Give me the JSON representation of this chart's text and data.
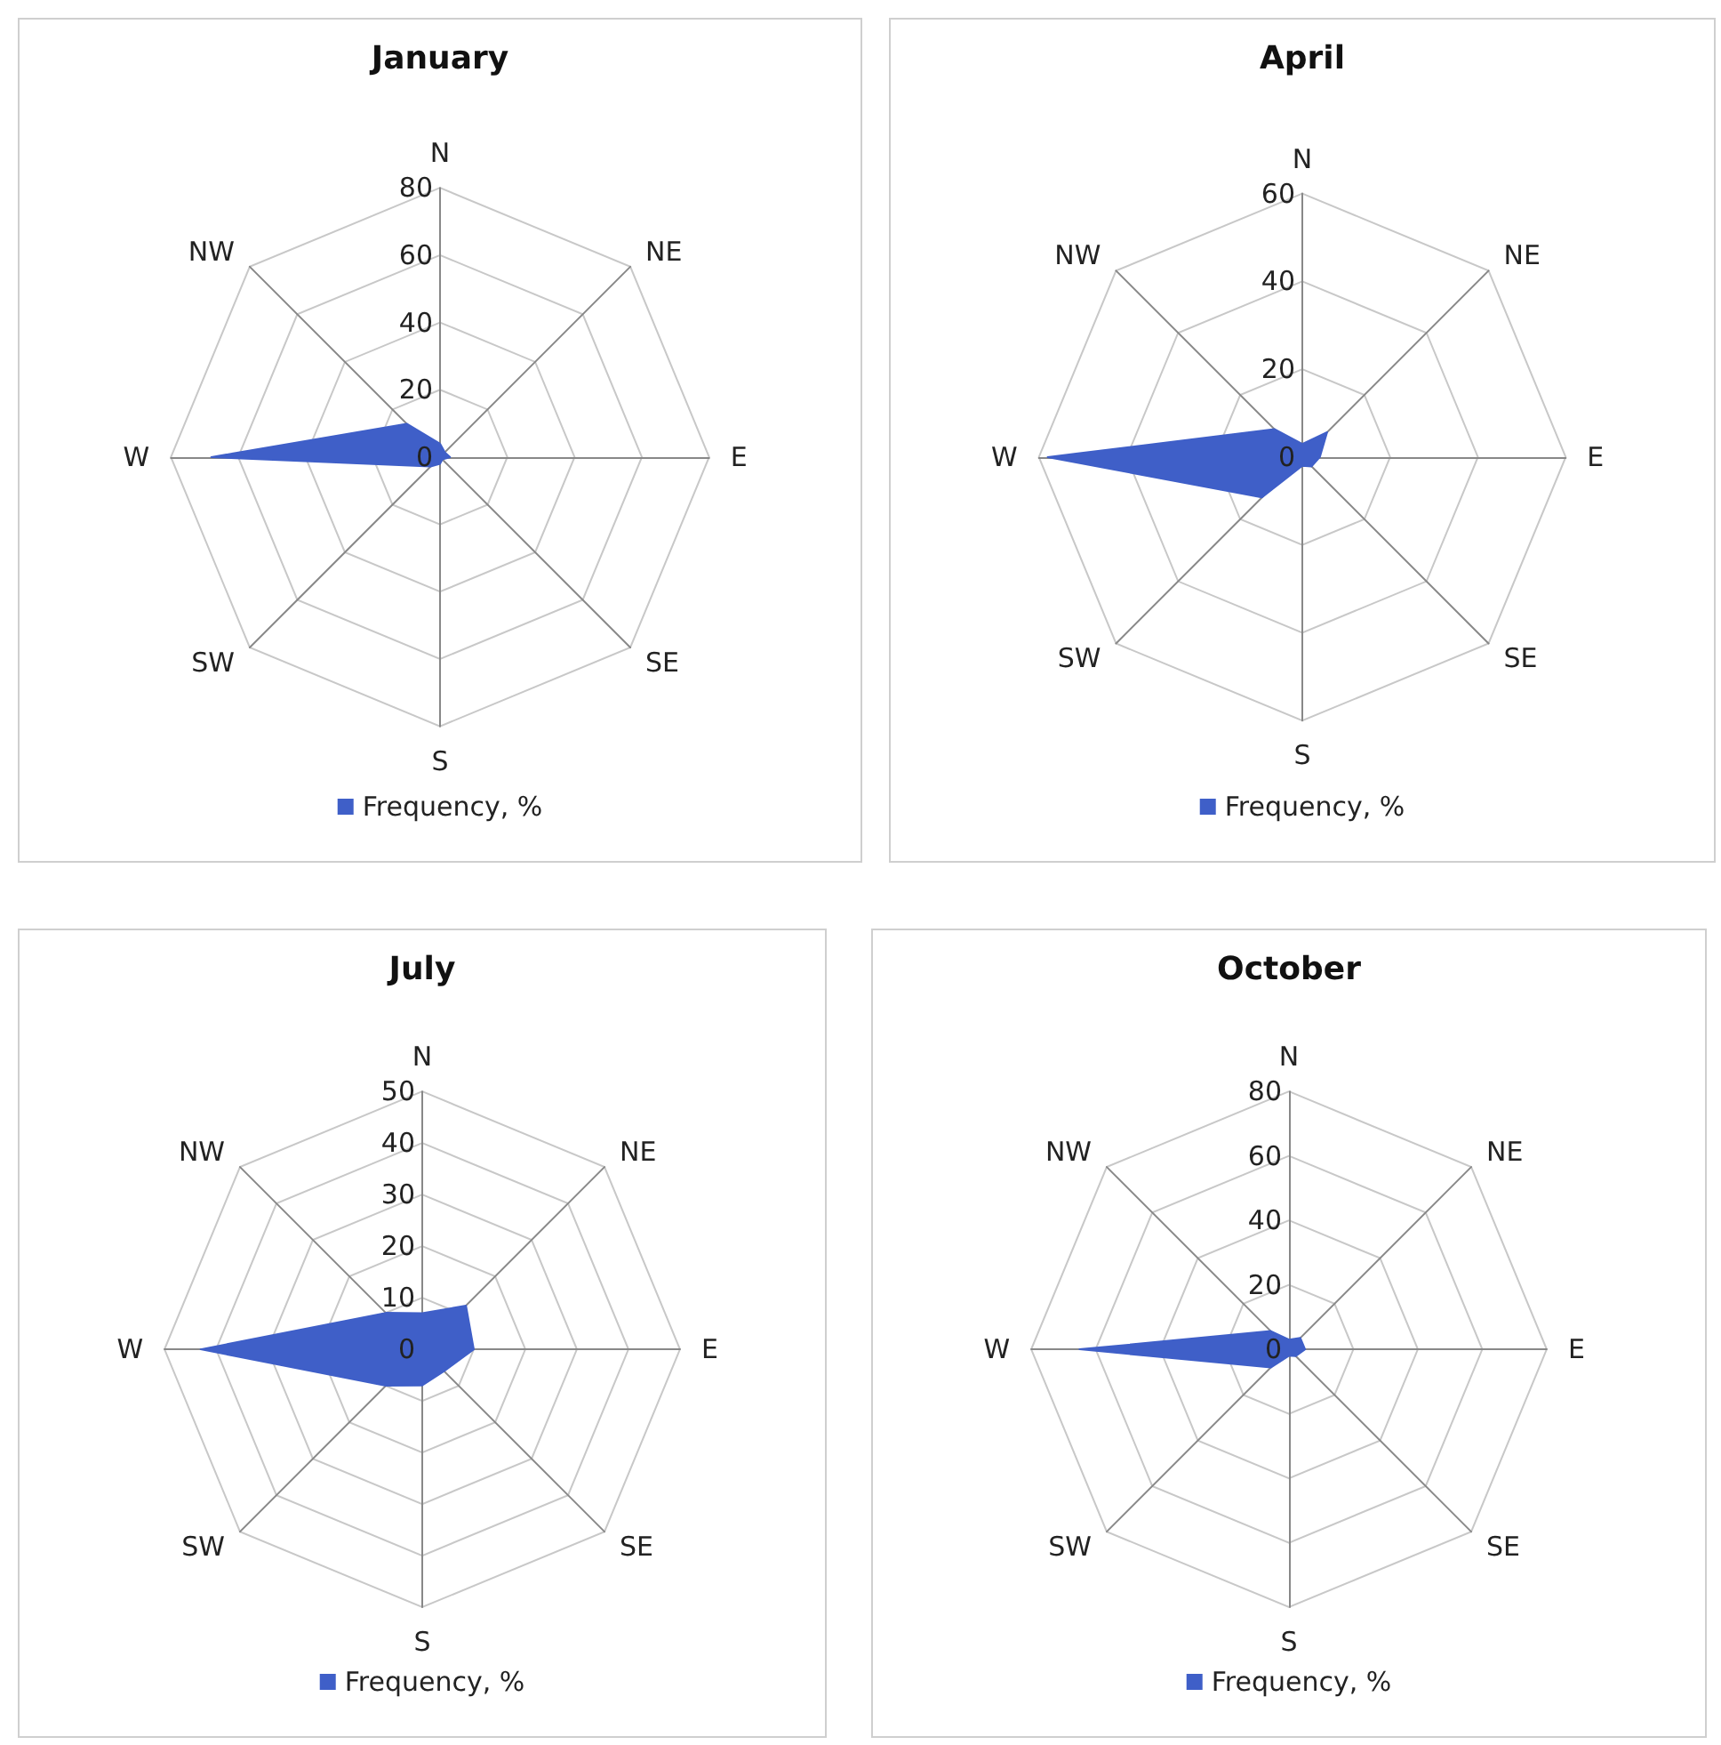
{
  "chart_data": [
    {
      "type": "radar",
      "title": "January",
      "categories": [
        "N",
        "NE",
        "E",
        "SE",
        "S",
        "SW",
        "W",
        "NW"
      ],
      "ylim": [
        0,
        80
      ],
      "yticks": [
        0,
        20,
        40,
        60,
        80
      ],
      "grid": true,
      "legend": "bottom",
      "series": [
        {
          "name": "Frequency, %",
          "color": "#3f5fc8",
          "values": [
            4,
            2,
            3,
            1,
            2,
            4,
            68,
            14
          ]
        }
      ]
    },
    {
      "type": "radar",
      "title": "April",
      "categories": [
        "N",
        "NE",
        "E",
        "SE",
        "S",
        "SW",
        "W",
        "NW"
      ],
      "ylim": [
        0,
        60
      ],
      "yticks": [
        0,
        20,
        40,
        60
      ],
      "grid": true,
      "legend": "bottom",
      "series": [
        {
          "name": "Frequency, %",
          "color": "#3f5fc8",
          "values": [
            3,
            8,
            4,
            3,
            2,
            13,
            58,
            9
          ]
        }
      ]
    },
    {
      "type": "radar",
      "title": "July",
      "categories": [
        "N",
        "NE",
        "E",
        "SE",
        "S",
        "SW",
        "W",
        "NW"
      ],
      "ylim": [
        0,
        50
      ],
      "yticks": [
        0,
        10,
        20,
        30,
        40,
        50
      ],
      "grid": true,
      "legend": "bottom",
      "series": [
        {
          "name": "Frequency, %",
          "color": "#3f5fc8",
          "values": [
            7,
            12,
            10,
            6,
            7,
            10,
            43,
            10
          ]
        }
      ]
    },
    {
      "type": "radar",
      "title": "October",
      "categories": [
        "N",
        "NE",
        "E",
        "SE",
        "S",
        "SW",
        "W",
        "NW"
      ],
      "ylim": [
        0,
        80
      ],
      "yticks": [
        0,
        20,
        40,
        60,
        80
      ],
      "grid": true,
      "legend": "bottom",
      "series": [
        {
          "name": "Frequency, %",
          "color": "#3f5fc8",
          "values": [
            3,
            5,
            5,
            3,
            2,
            8,
            65,
            8
          ]
        }
      ]
    }
  ]
}
